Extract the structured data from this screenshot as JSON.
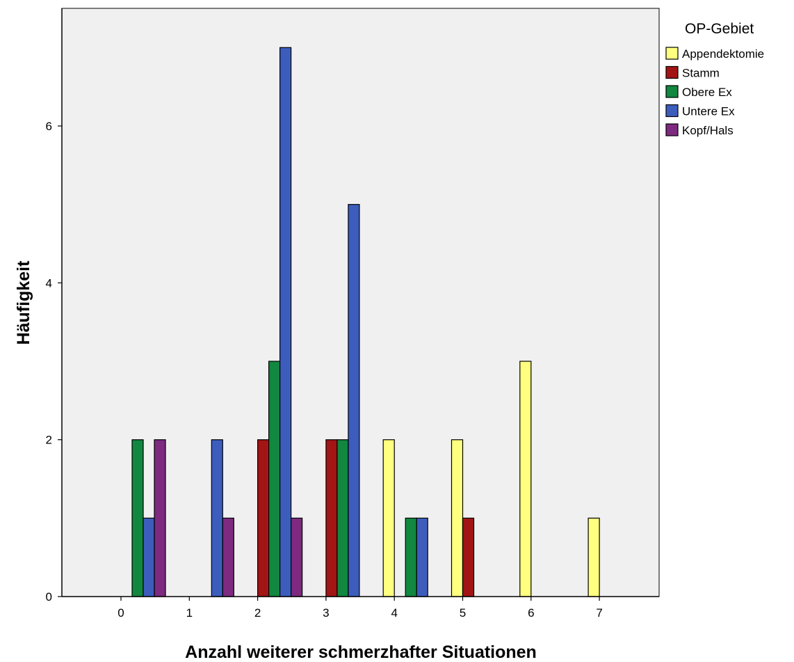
{
  "chart_data": {
    "type": "bar",
    "xlabel": "Anzahl weiterer schmerzhafter Situationen",
    "ylabel": "Häufigkeit",
    "categories": [
      "0",
      "1",
      "2",
      "3",
      "4",
      "5",
      "6",
      "7"
    ],
    "y_ticks": [
      0,
      2,
      4,
      6
    ],
    "ylim": [
      0,
      7.5
    ],
    "grid": false,
    "legend": {
      "title": "OP-Gebiet",
      "position": "right"
    },
    "series": [
      {
        "name": "Appendektomie",
        "color": "#ffff80",
        "values": [
          0,
          0,
          0,
          0,
          2,
          2,
          3,
          1
        ]
      },
      {
        "name": "Stamm",
        "color": "#a31515",
        "values": [
          0,
          0,
          2,
          2,
          0,
          1,
          0,
          0
        ]
      },
      {
        "name": "Obere Ex",
        "color": "#12873f",
        "values": [
          2,
          0,
          3,
          2,
          1,
          0,
          0,
          0
        ]
      },
      {
        "name": "Untere Ex",
        "color": "#3d5dbd",
        "values": [
          1,
          2,
          7,
          5,
          1,
          0,
          0,
          0
        ]
      },
      {
        "name": "Kopf/Hals",
        "color": "#7d2a80",
        "values": [
          2,
          1,
          1,
          0,
          0,
          0,
          0,
          0
        ]
      }
    ],
    "plot_background": "#f0f0f0"
  }
}
